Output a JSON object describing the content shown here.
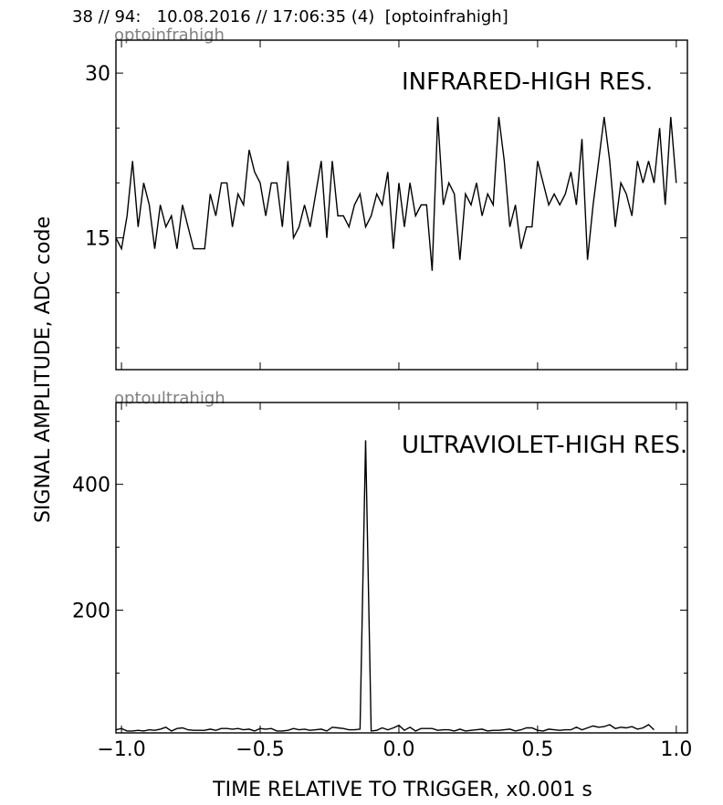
{
  "header": "38 // 94:   10.08.2016 // 17:06:35 (4)  [optoinfrahigh]",
  "ylabel": "SIGNAL AMPLITUDE,  ADC code",
  "xlabel": "TIME RELATIVE TO TRIGGER,   x0.001 s",
  "colors": {
    "line": "#000000",
    "channel_label": "#808080",
    "frame": "#000000"
  },
  "chart_data": [
    {
      "type": "line",
      "channel": "optoinfrahigh",
      "title": "INFRARED-HIGH RES.",
      "xlim": [
        -1.02,
        1.04
      ],
      "ylim": [
        3,
        33
      ],
      "xticks": [
        -1.0,
        -0.5,
        0.0,
        0.5,
        1.0
      ],
      "yticks": [
        15,
        30
      ],
      "yminor": [
        5,
        10,
        20,
        25
      ],
      "x_start": -1.02,
      "x_step": 0.02,
      "values": [
        15,
        14,
        17,
        22,
        16,
        20,
        18,
        14,
        18,
        16,
        17,
        14,
        18,
        16,
        14,
        14,
        14,
        19,
        17,
        20,
        20,
        16,
        19,
        18,
        23,
        21,
        20,
        17,
        20,
        20,
        16,
        22,
        15,
        16,
        18,
        16,
        19,
        22,
        15,
        22,
        17,
        17,
        16,
        18,
        19,
        16,
        17,
        19,
        18,
        21,
        14,
        20,
        16,
        20,
        17,
        18,
        18,
        12,
        26,
        18,
        20,
        19,
        13,
        19,
        18,
        20,
        17,
        19,
        18,
        26,
        22,
        16,
        18,
        14,
        16,
        16,
        22,
        20,
        18,
        19,
        18,
        19,
        21,
        18,
        24,
        13,
        18,
        22,
        26,
        22,
        16,
        20,
        19,
        17,
        22,
        20,
        22,
        20,
        25,
        18,
        26,
        20
      ]
    },
    {
      "type": "line",
      "channel": "optoultrahigh",
      "title": "ULTRAVIOLET-HIGH RES.",
      "xlim": [
        -1.02,
        1.04
      ],
      "ylim": [
        5,
        530
      ],
      "xticks": [
        -1.0,
        -0.5,
        0.0,
        0.5,
        1.0
      ],
      "yticks": [
        200,
        400
      ],
      "yminor": [
        100,
        300,
        500
      ],
      "x_start": -1.02,
      "x_step": 0.02,
      "values": [
        10,
        12,
        8,
        8,
        9,
        8,
        10,
        9,
        11,
        14,
        8,
        12,
        13,
        10,
        9,
        9,
        9,
        11,
        9,
        12,
        12,
        11,
        12,
        10,
        11,
        8,
        12,
        11,
        12,
        8,
        8,
        9,
        12,
        10,
        11,
        9,
        10,
        11,
        8,
        14,
        13,
        12,
        10,
        10,
        11,
        470,
        8,
        9,
        13,
        10,
        13,
        17,
        9,
        14,
        8,
        12,
        12,
        12,
        9,
        10,
        10,
        8,
        11,
        8,
        9,
        10,
        11,
        8,
        9,
        9,
        10,
        11,
        8,
        10,
        13,
        13,
        9,
        8,
        11,
        10,
        9,
        10,
        10,
        14,
        10,
        13,
        16,
        14,
        15,
        18,
        12,
        14,
        13,
        15,
        11,
        13,
        18,
        10
      ]
    }
  ]
}
